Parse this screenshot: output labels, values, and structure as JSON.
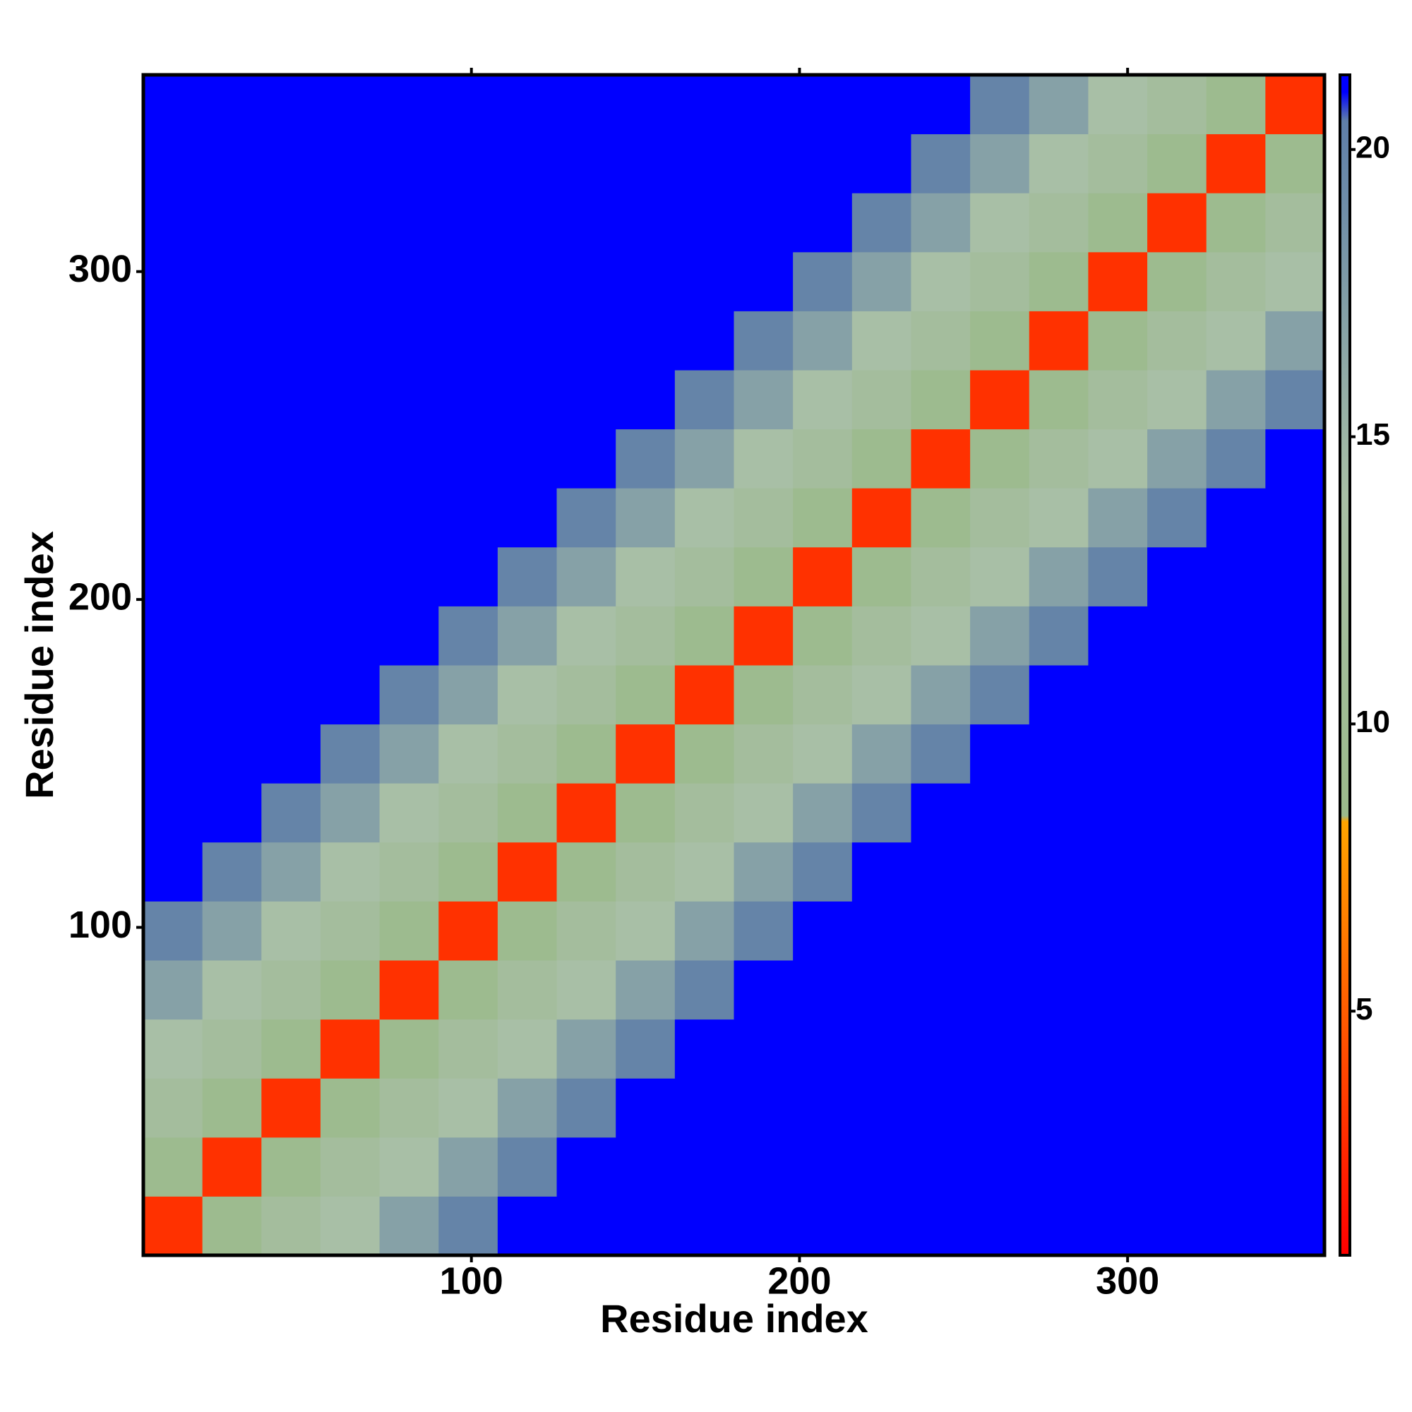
{
  "chart_data": {
    "type": "heatmap",
    "x_label": "Residue index",
    "y_label": "Residue index",
    "x_bins": [
      0,
      18,
      36,
      54,
      72,
      90,
      108,
      126,
      144,
      162,
      180,
      198,
      216,
      234,
      252,
      270,
      288,
      306,
      324,
      342,
      360
    ],
    "y_bins": [
      0,
      18,
      36,
      54,
      72,
      90,
      108,
      126,
      144,
      162,
      180,
      198,
      216,
      234,
      252,
      270,
      288,
      306,
      324,
      342,
      360
    ],
    "z": [
      [
        3,
        9,
        12,
        14,
        17,
        20,
        21,
        21,
        21,
        21,
        21,
        21,
        21,
        21,
        21,
        21,
        21,
        21,
        21,
        21
      ],
      [
        9,
        3,
        9,
        12,
        14,
        17,
        20,
        21,
        21,
        21,
        21,
        21,
        21,
        21,
        21,
        21,
        21,
        21,
        21,
        21
      ],
      [
        12,
        9,
        3,
        9,
        12,
        14,
        17,
        20,
        21,
        21,
        21,
        21,
        21,
        21,
        21,
        21,
        21,
        21,
        21,
        21
      ],
      [
        14,
        12,
        9,
        3,
        9,
        12,
        14,
        17,
        20,
        21,
        21,
        21,
        21,
        21,
        21,
        21,
        21,
        21,
        21,
        21
      ],
      [
        17,
        14,
        12,
        9,
        3,
        9,
        12,
        14,
        17,
        20,
        21,
        21,
        21,
        21,
        21,
        21,
        21,
        21,
        21,
        21
      ],
      [
        20,
        17,
        14,
        12,
        9,
        3,
        9,
        12,
        14,
        17,
        20,
        21,
        21,
        21,
        21,
        21,
        21,
        21,
        21,
        21
      ],
      [
        21,
        20,
        17,
        14,
        12,
        9,
        3,
        9,
        12,
        14,
        17,
        20,
        21,
        21,
        21,
        21,
        21,
        21,
        21,
        21
      ],
      [
        21,
        21,
        20,
        17,
        14,
        12,
        9,
        3,
        9,
        12,
        14,
        17,
        20,
        21,
        21,
        21,
        21,
        21,
        21,
        21
      ],
      [
        21,
        21,
        21,
        20,
        17,
        14,
        12,
        9,
        3,
        9,
        12,
        14,
        17,
        20,
        21,
        21,
        21,
        21,
        21,
        21
      ],
      [
        21,
        21,
        21,
        21,
        20,
        17,
        14,
        12,
        9,
        3,
        9,
        12,
        14,
        17,
        20,
        21,
        21,
        21,
        21,
        21
      ],
      [
        21,
        21,
        21,
        21,
        21,
        20,
        17,
        14,
        12,
        9,
        3,
        9,
        12,
        14,
        17,
        20,
        21,
        21,
        21,
        21
      ],
      [
        21,
        21,
        21,
        21,
        21,
        21,
        20,
        17,
        14,
        12,
        9,
        3,
        9,
        12,
        14,
        17,
        20,
        21,
        21,
        21
      ],
      [
        21,
        21,
        21,
        21,
        21,
        21,
        21,
        20,
        17,
        14,
        12,
        9,
        3,
        9,
        12,
        14,
        17,
        20,
        21,
        21
      ],
      [
        21,
        21,
        21,
        21,
        21,
        21,
        21,
        21,
        20,
        17,
        14,
        12,
        9,
        3,
        9,
        12,
        14,
        17,
        20,
        21
      ],
      [
        21,
        21,
        21,
        21,
        21,
        21,
        21,
        21,
        21,
        20,
        17,
        14,
        12,
        9,
        3,
        9,
        12,
        14,
        17,
        20
      ],
      [
        21,
        21,
        21,
        21,
        21,
        21,
        21,
        21,
        21,
        21,
        20,
        17,
        14,
        12,
        9,
        3,
        9,
        12,
        14,
        17
      ],
      [
        21,
        21,
        21,
        21,
        21,
        21,
        21,
        21,
        21,
        21,
        21,
        20,
        17,
        14,
        12,
        9,
        3,
        9,
        12,
        14
      ],
      [
        21,
        21,
        21,
        21,
        21,
        21,
        21,
        21,
        21,
        21,
        21,
        21,
        20,
        17,
        14,
        12,
        9,
        3,
        9,
        12
      ],
      [
        21,
        21,
        21,
        21,
        21,
        21,
        21,
        21,
        21,
        21,
        21,
        21,
        21,
        20,
        17,
        14,
        12,
        9,
        3,
        9
      ],
      [
        21,
        21,
        21,
        21,
        21,
        21,
        21,
        21,
        21,
        21,
        21,
        21,
        21,
        21,
        20,
        17,
        14,
        12,
        9,
        3
      ]
    ],
    "xlim": [
      0,
      360
    ],
    "ylim": [
      0,
      360
    ],
    "xticks": [
      100,
      200,
      300
    ],
    "yticks": [
      100,
      200,
      300
    ],
    "clim": [
      0.75,
      21.3
    ],
    "cticks": [
      5,
      10,
      15,
      20
    ],
    "colorscale": [
      {
        "value": 0.75,
        "color": "#ff0000"
      },
      {
        "value": 8.3,
        "color": "#ffa500"
      },
      {
        "value": 8.4,
        "color": "#9cba8c"
      },
      {
        "value": 14,
        "color": "#a8bfa6"
      },
      {
        "value": 20.5,
        "color": "#5f7fa8"
      },
      {
        "value": 21,
        "color": "#0000ff"
      }
    ]
  }
}
